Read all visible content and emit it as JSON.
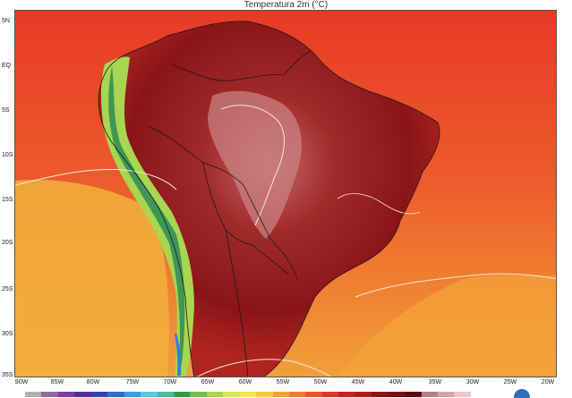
{
  "title": "Temperatura 2m (°C)",
  "lat_labels": [
    "5N",
    "EQ",
    "5S",
    "10S",
    "15S",
    "20S",
    "25S",
    "30S",
    "35S"
  ],
  "lon_labels": [
    "90W",
    "85W",
    "80W",
    "75W",
    "70W",
    "65W",
    "60W",
    "55W",
    "50W",
    "45W",
    "40W",
    "35W",
    "30W",
    "25W",
    "20W"
  ],
  "colors": {
    "ocean_hot": "#e8402a",
    "ocean_warm": "#f06a2e",
    "ocean_mild": "#f2a13a",
    "land_hot": "#a61e1e",
    "land_hottest": "#7a0f14",
    "land_core": "#c97070",
    "andes_cool": "#9fd36a",
    "andes_cold": "#2e8b57",
    "peaks": "#3a7bd5",
    "contour": "#f4e9d8",
    "borders": "#1a1a1a"
  },
  "colorbar_colors": [
    "#b0b0b0",
    "#8c6aa8",
    "#7b3fa3",
    "#5a2d91",
    "#3a3fb0",
    "#2f6fd0",
    "#3a9ee0",
    "#5fc6e6",
    "#4db89a",
    "#2e9a4a",
    "#6cc04a",
    "#a8d650",
    "#d8e65a",
    "#f2e55a",
    "#f6c64a",
    "#f2a13a",
    "#ee7d31",
    "#e8582c",
    "#d83a26",
    "#c0261f",
    "#a61e1e",
    "#8c1418",
    "#7a0f14",
    "#5a0a10",
    "#b58080",
    "#d4a5a5",
    "#e8cccc"
  ]
}
